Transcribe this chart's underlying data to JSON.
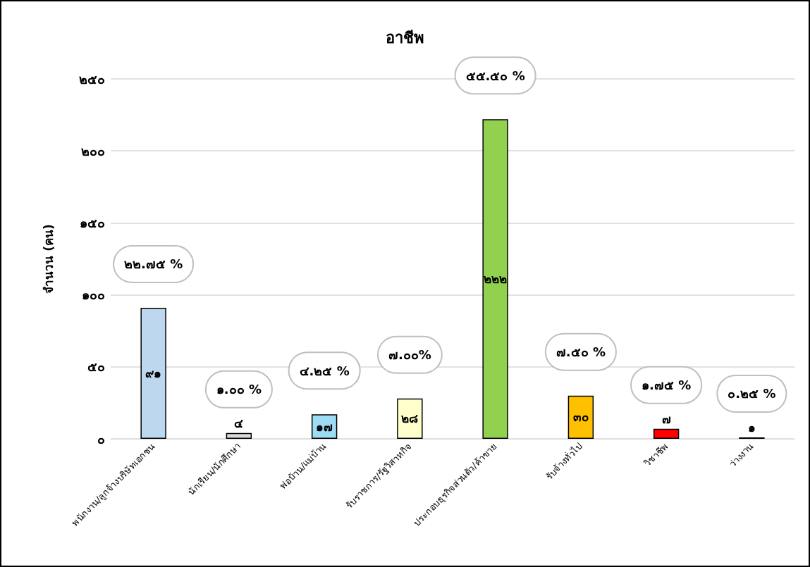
{
  "chart_data": {
    "type": "bar",
    "title": "อาชีพ",
    "ylabel": "จำนวน (คน)",
    "categories": [
      "พนักงาน/ลูกจ้างบริษัทเอกชน",
      "นักเรียน/นักศึกษา",
      "พ่อบ้าน/แม่บ้าน",
      "รับราชการ/รัฐวิสาหกิจ",
      "ประกอบธุรกิจส่วนตัว/ค้าขาย",
      "รับจ้างทั่วไป",
      "วิชาชีพ",
      "ว่างงาน"
    ],
    "values": [
      91,
      4,
      17,
      28,
      222,
      30,
      7,
      1
    ],
    "colors": [
      "#bdd7ee",
      "#d9d9d9",
      "#9ddcf5",
      "#ffffcc",
      "#92d050",
      "#ffc000",
      "#ff0000",
      "#000000"
    ],
    "value_labels": [
      "๙๑",
      "๔",
      "๑๗",
      "๒๘",
      "๒๒๒",
      "๓๐",
      "๗",
      "๑"
    ],
    "ylim": [
      0,
      250
    ],
    "yticks": [
      {
        "value": 0,
        "label": "๐"
      },
      {
        "value": 50,
        "label": "๕๐"
      },
      {
        "value": 100,
        "label": "๑๐๐"
      },
      {
        "value": 150,
        "label": "๑๕๐"
      },
      {
        "value": 200,
        "label": "๒๐๐"
      },
      {
        "value": 250,
        "label": "๒๕๐"
      }
    ],
    "grid": "y",
    "annotations": [
      {
        "text": "๒๒.๗๕ %",
        "x": "พนักงาน/ลูกจ้างบริษัทเอกชน",
        "y": 91
      },
      {
        "text": "๑.๐๐ %",
        "x": "นักเรียน/นักศึกษา",
        "y": 4
      },
      {
        "text": "๔.๒๕ %",
        "x": "พ่อบ้าน/แม่บ้าน",
        "y": 17
      },
      {
        "text": "๗.๐๐%",
        "x": "รับราชการ/รัฐวิสาหกิจ",
        "y": 28
      },
      {
        "text": "๕๕.๕๐ %",
        "x": "ประกอบธุรกิจส่วนตัว/ค้าขาย",
        "y": 222
      },
      {
        "text": "๗.๕๐ %",
        "x": "รับจ้างทั่วไป",
        "y": 30
      },
      {
        "text": "๑.๗๕ %",
        "x": "วิชาชีพ",
        "y": 7
      },
      {
        "text": "๐.๒๕ %",
        "x": "ว่างงาน",
        "y": 1
      }
    ]
  }
}
